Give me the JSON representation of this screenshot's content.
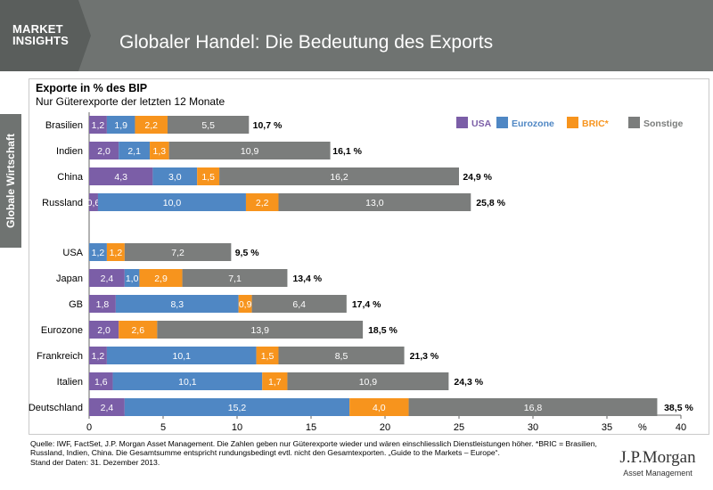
{
  "header": {
    "logo_text": "MARKET\nINSIGHTS",
    "title": "Globaler Handel: Die Bedeutung des Exports"
  },
  "side_tab": {
    "label": "Globale Wirtschaft"
  },
  "footer": {
    "source_note": "Quelle: IWF, FactSet, J.P. Morgan Asset Management. Die Zahlen geben nur Güterexporte wieder und wären einschliesslich Dienstleistungen höher. *BRIC = Brasilien, Russland, Indien, China. Die Gesamtsumme entspricht rundungsbedingt evtl. nicht den Gesamtexporten. „Guide to the Markets – Europe“.",
    "date_note": "Stand der Daten: 31. Dezember 2013.",
    "brand": "J.P.Morgan",
    "brand_sub": "Asset Management"
  },
  "colors": {
    "header": "#6f7371",
    "usa": "#7b5ea7",
    "eurozone": "#4f87c4",
    "bric": "#f7941d",
    "sonstige": "#7b7d7c"
  },
  "chart_data": {
    "type": "bar",
    "orientation": "horizontal",
    "stacked": true,
    "title": "Exporte in % des BIP",
    "subtitle": "Nur Güterexporte der letzten 12 Monate",
    "x_tick_labels": [
      "0",
      "5",
      "10",
      "15",
      "20",
      "25",
      "30",
      "35",
      "%",
      "40"
    ],
    "xlim": [
      0,
      40
    ],
    "legend_position": "top-right",
    "series": [
      {
        "name": "USA",
        "color": "#7b5ea7"
      },
      {
        "name": "Eurozone",
        "color": "#4f87c4"
      },
      {
        "name": "BRIC*",
        "color": "#f7941d"
      },
      {
        "name": "Sonstige",
        "color": "#7b7d7c"
      }
    ],
    "groups": [
      {
        "countries": [
          {
            "label": "Brasilien",
            "segments": [
              [
                0,
                1.2,
                "1,2"
              ],
              [
                1,
                1.9,
                "1,9"
              ],
              [
                2,
                2.2,
                "2,2"
              ],
              [
                3,
                5.5,
                "5,5"
              ]
            ],
            "total": 10.7,
            "total_label": "10,7 %"
          },
          {
            "label": "Indien",
            "segments": [
              [
                0,
                2.0,
                "2,0"
              ],
              [
                1,
                2.1,
                "2,1"
              ],
              [
                2,
                1.3,
                "1,3"
              ],
              [
                3,
                10.9,
                "10,9"
              ]
            ],
            "total": 16.1,
            "total_label": "16,1 %"
          },
          {
            "label": "China",
            "segments": [
              [
                0,
                4.3,
                "4,3"
              ],
              [
                1,
                3.0,
                "3,0"
              ],
              [
                2,
                1.5,
                "1,5"
              ],
              [
                3,
                16.2,
                "16,2"
              ]
            ],
            "total": 24.9,
            "total_label": "24,9 %"
          },
          {
            "label": "Russland",
            "segments": [
              [
                0,
                0.6,
                "0,6"
              ],
              [
                1,
                10.0,
                "10,0"
              ],
              [
                2,
                2.2,
                "2,2"
              ],
              [
                3,
                13.0,
                "13,0"
              ]
            ],
            "total": 25.8,
            "total_label": "25,8 %"
          }
        ]
      },
      {
        "countries": [
          {
            "label": "USA",
            "segments": [
              [
                1,
                1.2,
                "1,2"
              ],
              [
                2,
                1.2,
                "1,2"
              ],
              [
                3,
                7.2,
                "7,2"
              ]
            ],
            "total": 9.5,
            "total_label": "9,5 %"
          },
          {
            "label": "Japan",
            "segments": [
              [
                0,
                2.4,
                "2,4"
              ],
              [
                1,
                1.0,
                "1,0"
              ],
              [
                2,
                2.9,
                "2,9"
              ],
              [
                3,
                7.1,
                "7,1"
              ]
            ],
            "total": 13.4,
            "total_label": "13,4 %"
          },
          {
            "label": "GB",
            "segments": [
              [
                0,
                1.8,
                "1,8"
              ],
              [
                1,
                8.3,
                "8,3"
              ],
              [
                2,
                0.9,
                "0,9"
              ],
              [
                3,
                6.4,
                "6,4"
              ]
            ],
            "total": 17.4,
            "total_label": "17,4 %"
          },
          {
            "label": "Eurozone",
            "segments": [
              [
                0,
                2.0,
                "2,0"
              ],
              [
                2,
                2.6,
                "2,6"
              ],
              [
                3,
                13.9,
                "13,9"
              ]
            ],
            "total": 18.5,
            "total_label": "18,5 %"
          },
          {
            "label": "Frankreich",
            "segments": [
              [
                0,
                1.2,
                "1,2"
              ],
              [
                1,
                10.1,
                "10,1"
              ],
              [
                2,
                1.5,
                "1,5"
              ],
              [
                3,
                8.5,
                "8,5"
              ]
            ],
            "total": 21.3,
            "total_label": "21,3 %"
          },
          {
            "label": "Italien",
            "segments": [
              [
                0,
                1.6,
                "1,6"
              ],
              [
                1,
                10.1,
                "10,1"
              ],
              [
                2,
                1.7,
                "1,7"
              ],
              [
                3,
                10.9,
                "10,9"
              ]
            ],
            "total": 24.3,
            "total_label": "24,3 %"
          },
          {
            "label": "Deutschland",
            "segments": [
              [
                0,
                2.4,
                "2,4"
              ],
              [
                1,
                15.2,
                "15,2"
              ],
              [
                2,
                4.0,
                "4,0"
              ],
              [
                3,
                16.8,
                "16,8"
              ]
            ],
            "total": 38.5,
            "total_label": "38,5 %"
          }
        ]
      }
    ]
  }
}
